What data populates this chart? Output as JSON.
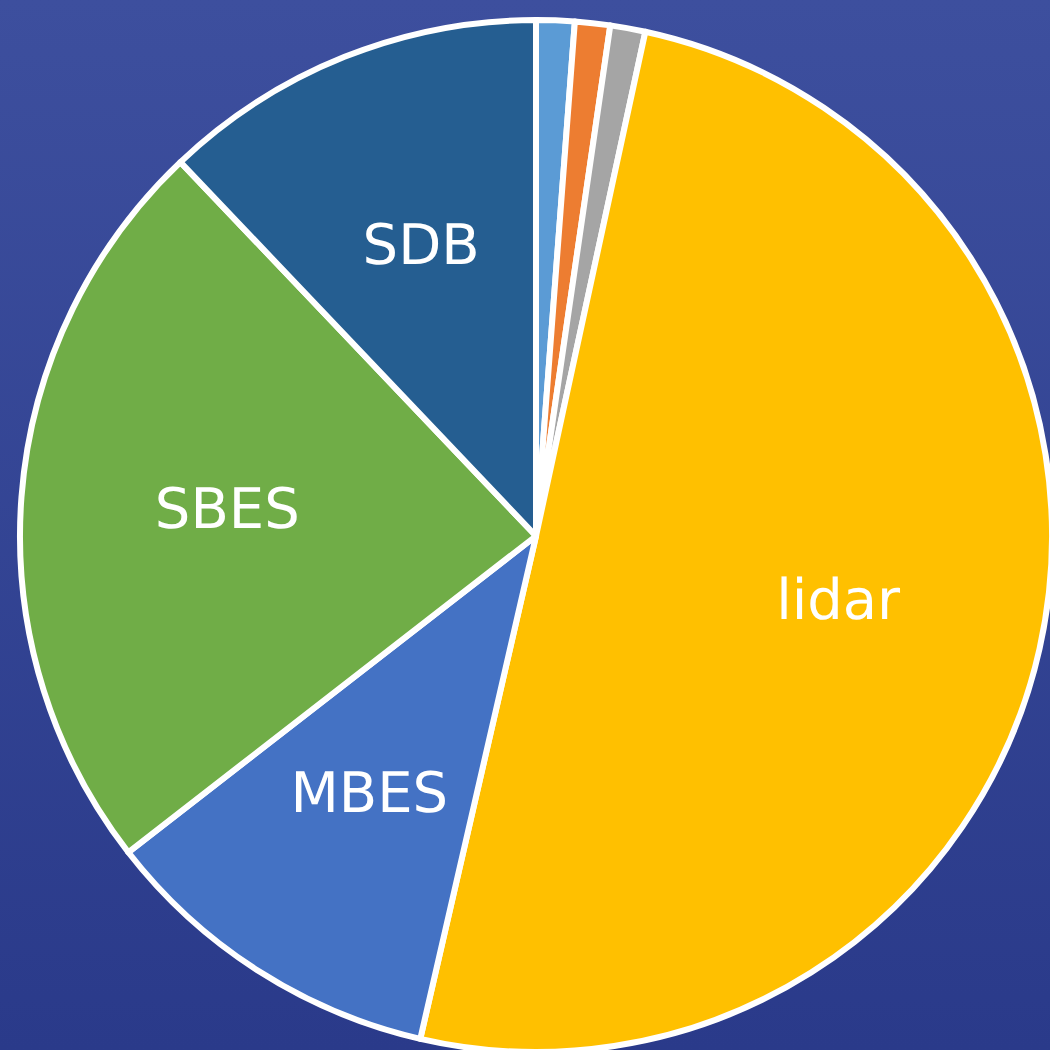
{
  "chart_data": {
    "type": "pie",
    "categories": [
      null,
      null,
      null,
      "lidar",
      "MBES",
      "SBES",
      "SDB"
    ],
    "values": [
      1.2,
      1.1,
      1.1,
      50.2,
      10.9,
      23.4,
      12.1
    ],
    "colors": [
      "#5b9bd5",
      "#ed7d31",
      "#a5a5a5",
      "#ffc000",
      "#4472c4",
      "#70ad47",
      "#255e91"
    ]
  }
}
